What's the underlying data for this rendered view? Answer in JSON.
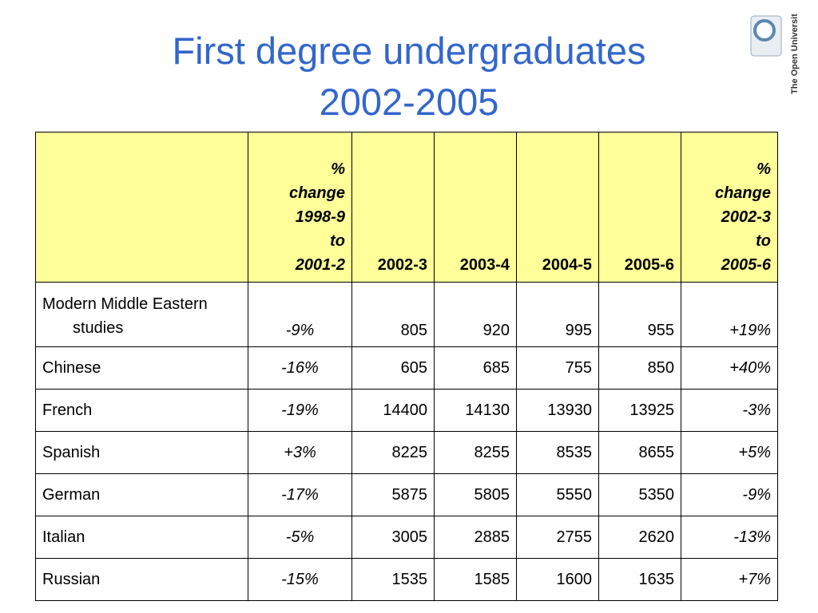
{
  "title": [
    "First degree undergraduates",
    "2002-2005"
  ],
  "logo": {
    "text": "The Open University"
  },
  "table": {
    "header": [
      [
        "%",
        "change",
        "1998-9",
        "to",
        "2001-2"
      ],
      [
        "2002-3"
      ],
      [
        "2003-4"
      ],
      [
        "2004-5"
      ],
      [
        "2005-6"
      ],
      [
        "%",
        "change",
        "2002-3",
        "to",
        "2005-6"
      ]
    ],
    "rows": [
      [
        "Modern Middle Eastern studies",
        "-9%",
        805,
        920,
        995,
        955,
        "+19%"
      ],
      [
        "Chinese",
        "-16%",
        605,
        685,
        755,
        850,
        "+40%"
      ],
      [
        "French",
        "-19%",
        14400,
        14130,
        13930,
        13925,
        "-3%"
      ],
      [
        "Spanish",
        "+3%",
        8225,
        8255,
        8535,
        8655,
        "+5%"
      ],
      [
        "German",
        "-17%",
        5875,
        5805,
        5550,
        5350,
        "-9%"
      ],
      [
        "Italian",
        "-5%",
        3005,
        2885,
        2755,
        2620,
        "-13%"
      ],
      [
        "Russian",
        "-15%",
        1535,
        1585,
        1600,
        1635,
        "+7%"
      ]
    ]
  }
}
